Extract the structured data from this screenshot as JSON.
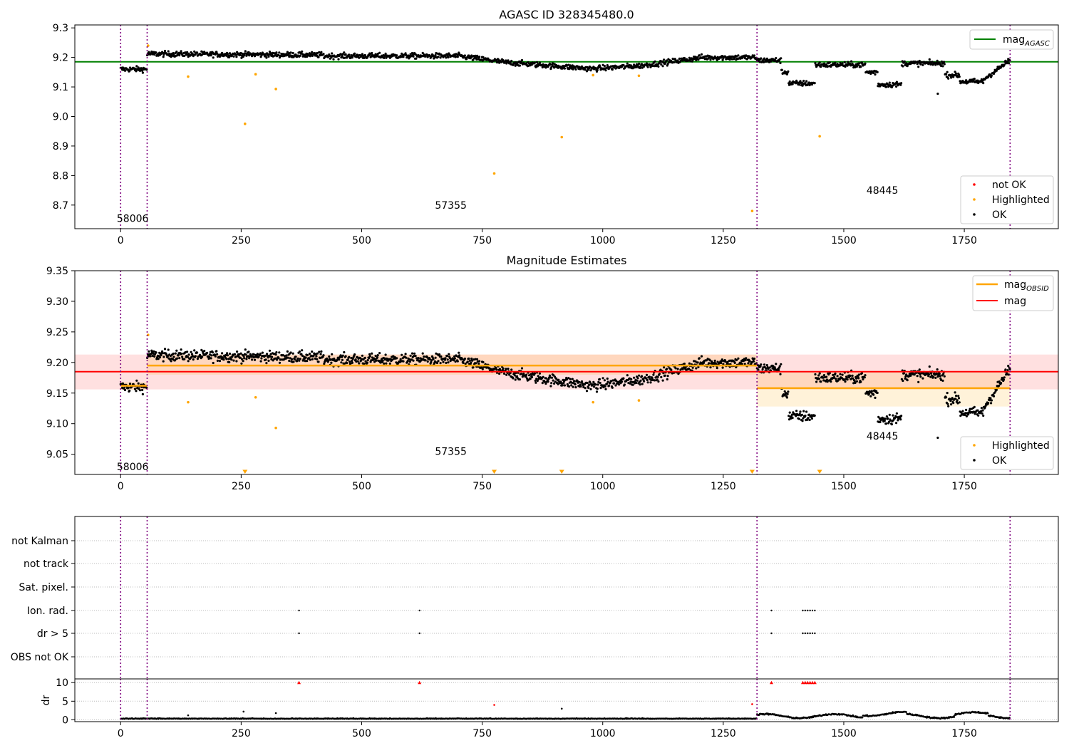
{
  "chart_data": [
    {
      "type": "scatter",
      "title": "AGASC ID 328345480.0",
      "xlim": [
        -95,
        1945
      ],
      "ylim": [
        8.62,
        9.31
      ],
      "xticks": [
        "0",
        "250",
        "500",
        "750",
        "1000",
        "1250",
        "1500",
        "1750",
        "2000"
      ],
      "yticks": [
        "8.7",
        "8.8",
        "8.9",
        "9.0",
        "9.1",
        "9.2",
        "9.3"
      ],
      "obsids": [
        {
          "label": "58006",
          "x": 25,
          "y": 8.655
        },
        {
          "label": "57355",
          "x": 685,
          "y": 8.7
        },
        {
          "label": "48445",
          "x": 1580,
          "y": 8.75
        }
      ],
      "vlines": [
        0,
        55,
        1320,
        1845
      ],
      "hline": {
        "name": "mag_AGASC",
        "value": 9.185,
        "x": [
          -95,
          1945
        ],
        "color": "#008000"
      },
      "highlighted": [
        {
          "x": 57,
          "y": 9.24
        },
        {
          "x": 140,
          "y": 9.135
        },
        {
          "x": 258,
          "y": 8.975
        },
        {
          "x": 280,
          "y": 9.143
        },
        {
          "x": 322,
          "y": 9.093
        },
        {
          "x": 775,
          "y": 8.807
        },
        {
          "x": 915,
          "y": 8.93
        },
        {
          "x": 980,
          "y": 9.14
        },
        {
          "x": 1075,
          "y": 9.138
        },
        {
          "x": 1310,
          "y": 8.68
        },
        {
          "x": 1450,
          "y": 8.933
        }
      ],
      "legend_series": [
        {
          "label": "not OK",
          "color": "#ff0000"
        },
        {
          "label": "Highlighted",
          "color": "#ffa500"
        },
        {
          "label": "OK",
          "color": "#000000"
        }
      ]
    },
    {
      "type": "scatter",
      "title": "Magnitude Estimates",
      "xlim": [
        -95,
        1945
      ],
      "ylim": [
        9.017,
        9.35
      ],
      "xticks": [
        "0",
        "250",
        "500",
        "750",
        "1000",
        "1250",
        "1500",
        "1750",
        "2000"
      ],
      "yticks": [
        "9.05",
        "9.10",
        "9.15",
        "9.20",
        "9.25",
        "9.30",
        "9.35"
      ],
      "obsids": [
        {
          "label": "58006",
          "x": 25,
          "y": 9.03
        },
        {
          "label": "57355",
          "x": 685,
          "y": 9.055
        },
        {
          "label": "48445",
          "x": 1580,
          "y": 9.08
        }
      ],
      "vlines": [
        0,
        55,
        1320,
        1845
      ],
      "mag_line": {
        "name": "mag",
        "value": 9.185,
        "x": [
          -95,
          1945
        ],
        "band": [
          9.156,
          9.213
        ],
        "color": "#ff0000"
      },
      "mag_obsid": [
        {
          "x": [
            0,
            55
          ],
          "value": 9.162,
          "band": [
            9.155,
            9.168
          ]
        },
        {
          "x": [
            55,
            1320
          ],
          "value": 9.195,
          "band": [
            9.18,
            9.213
          ]
        },
        {
          "x": [
            1320,
            1845
          ],
          "value": 9.158,
          "band": [
            9.128,
            9.185
          ]
        }
      ],
      "highlighted": [
        {
          "x": 57,
          "y": 9.245
        },
        {
          "x": 140,
          "y": 9.135
        },
        {
          "x": 280,
          "y": 9.143
        },
        {
          "x": 322,
          "y": 9.093
        },
        {
          "x": 980,
          "y": 9.135
        },
        {
          "x": 1075,
          "y": 9.138
        }
      ],
      "markers_below": [
        258,
        775,
        915,
        1310,
        1450
      ],
      "legend": {
        "mag_obsid": "mag",
        "mag_obsid_sub": "OBSID",
        "mag": "mag"
      },
      "legend_series": [
        {
          "label": "Highlighted",
          "color": "#ffa500"
        },
        {
          "label": "OK",
          "color": "#000000"
        }
      ]
    },
    {
      "type": "scatter",
      "xlim": [
        -95,
        1945
      ],
      "xticks": [
        "0",
        "250",
        "500",
        "750",
        "1000",
        "1250",
        "1500",
        "1750",
        "2000"
      ],
      "flag_rows": [
        "not Kalman",
        "not track",
        "Sat. pixel.",
        "Ion. rad.",
        "dr > 5",
        "OBS not OK"
      ],
      "flag_points": {
        "Ion. rad.": [
          370,
          620,
          1350,
          1415,
          1420,
          1425,
          1430,
          1435,
          1440
        ],
        "dr > 5": [
          370,
          620,
          1350,
          1415,
          1420,
          1425,
          1430,
          1435,
          1440
        ]
      },
      "dr_ylim": [
        -0.5,
        11
      ],
      "dr_yticks": [
        "0",
        "5",
        "10"
      ],
      "dr_ylabel": "dr",
      "dr_clipped": [
        370,
        620,
        1350,
        1415,
        1420,
        1425,
        1430,
        1435,
        1440
      ],
      "dr_outliers": [
        {
          "x": 140,
          "y": 1.2,
          "color": "#000000"
        },
        {
          "x": 255,
          "y": 2.2,
          "color": "#000000"
        },
        {
          "x": 322,
          "y": 1.8,
          "color": "#000000"
        },
        {
          "x": 775,
          "y": 4.0,
          "color": "#ff0000"
        },
        {
          "x": 915,
          "y": 3.0,
          "color": "#000000"
        },
        {
          "x": 1310,
          "y": 4.2,
          "color": "#ff0000"
        }
      ]
    }
  ],
  "colors": {
    "ok": "#000000",
    "highlighted": "#ffa500",
    "not_ok": "#ff0000",
    "vline": "#800080",
    "agasc": "#008000",
    "mag": "#ff0000",
    "mag_obsid": "#ffa500"
  }
}
